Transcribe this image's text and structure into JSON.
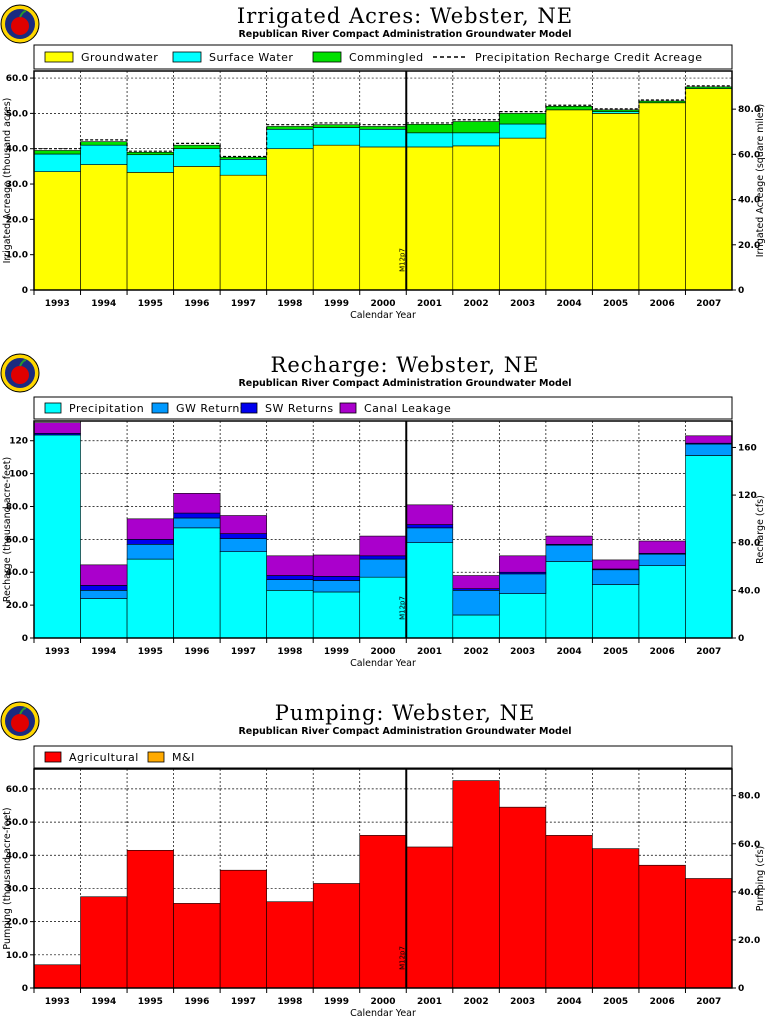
{
  "colors": {
    "groundwater": "#ffff00",
    "surface_water": "#00ffff",
    "commingled": "#00e000",
    "precipitation": "#00ffff",
    "gw_returns": "#0099ff",
    "sw_returns": "#0000ee",
    "canal_leakage": "#aa00cc",
    "agricultural": "#ff0000",
    "mi": "#ffaa00"
  },
  "icon": "apple-logo-icon",
  "chart_data": [
    {
      "type": "bar",
      "stacked": true,
      "title": "Irrigated Acres: Webster, NE",
      "subtitle": "Republican River Compact Administration Groundwater Model",
      "xlabel": "Calendar Year",
      "ylabel": "Irrigated Acreage (thousand acres)",
      "y2label": "Irrigated Acreage (square miles)",
      "categories": [
        "1993",
        "1994",
        "1995",
        "1996",
        "1997",
        "1998",
        "1999",
        "2000",
        "2001",
        "2002",
        "2003",
        "2004",
        "2005",
        "2006",
        "2007"
      ],
      "ylim": [
        0,
        62
      ],
      "yticks": [
        0,
        10.0,
        20.0,
        30.0,
        40.0,
        50.0,
        60.0
      ],
      "y2lim": [
        0,
        96.875
      ],
      "y2ticks": [
        0,
        20.0,
        40.0,
        60.0,
        80.0
      ],
      "grid": true,
      "legend_position": "top",
      "marker_label": "M12p7",
      "marker_between": [
        "2000",
        "2001"
      ],
      "series": [
        {
          "name": "Groundwater",
          "color": "#ffff00",
          "values": [
            33.5,
            35.5,
            33.3,
            35.0,
            32.5,
            40.0,
            41.0,
            40.5,
            40.5,
            40.8,
            43.0,
            51.0,
            50.0,
            53.0,
            57.0
          ]
        },
        {
          "name": "Surface Water",
          "color": "#00ffff",
          "values": [
            5.0,
            5.5,
            5.0,
            5.0,
            4.5,
            5.5,
            5.0,
            5.0,
            4.0,
            3.7,
            4.0,
            0,
            0.5,
            0,
            0
          ]
        },
        {
          "name": "Commingled",
          "color": "#00e000",
          "values": [
            1.0,
            1.0,
            0.7,
            1.0,
            0.6,
            0.8,
            0.8,
            0.8,
            2.4,
            3.2,
            3.0,
            1.0,
            0.5,
            0.5,
            0.5
          ]
        }
      ],
      "reference_line": {
        "name": "Precipitation Recharge Credit Acreage",
        "values": [
          40.0,
          42.5,
          39.3,
          41.5,
          37.8,
          46.8,
          47.3,
          46.8,
          47.3,
          48.2,
          50.5,
          52.3,
          51.3,
          53.8,
          57.8
        ]
      }
    },
    {
      "type": "bar",
      "stacked": true,
      "title": "Recharge: Webster, NE",
      "subtitle": "Republican River Compact Administration Groundwater Model",
      "xlabel": "Calendar Year",
      "ylabel": "Recharge (thousand acre-feet)",
      "y2label": "Recharge (cfs)",
      "categories": [
        "1993",
        "1994",
        "1995",
        "1996",
        "1997",
        "1998",
        "1999",
        "2000",
        "2001",
        "2002",
        "2003",
        "2004",
        "2005",
        "2006",
        "2007"
      ],
      "ylim": [
        0,
        132
      ],
      "yticks": [
        0,
        20.0,
        40.0,
        60.0,
        80.0,
        100,
        120
      ],
      "y2lim": [
        0,
        182.2
      ],
      "y2ticks": [
        0,
        40.0,
        80.0,
        120,
        160
      ],
      "grid": true,
      "legend_position": "top",
      "marker_label": "M12p7",
      "marker_between": [
        "2000",
        "2001"
      ],
      "series": [
        {
          "name": "Precipitation",
          "color": "#00ffff",
          "values": [
            123.5,
            24.0,
            48.0,
            67.0,
            52.5,
            29.0,
            28.0,
            37.0,
            58.0,
            14.0,
            27.0,
            46.5,
            32.5,
            44.0,
            111.0
          ]
        },
        {
          "name": "GW Returns",
          "color": "#0099ff",
          "values": [
            0,
            5.0,
            9.0,
            6.0,
            8.0,
            6.5,
            7.0,
            11.0,
            9.0,
            15.0,
            12.0,
            10.0,
            9.0,
            7.0,
            7.0
          ]
        },
        {
          "name": "SW Returns",
          "color": "#0000ee",
          "values": [
            1.0,
            3.0,
            3.0,
            3.0,
            3.0,
            2.5,
            2.5,
            2.0,
            2.0,
            1.0,
            1.0,
            0.5,
            0.5,
            0.5,
            0.5
          ]
        },
        {
          "name": "Canal Leakage",
          "color": "#aa00cc",
          "values": [
            6.5,
            12.5,
            12.5,
            12.0,
            11.0,
            12.0,
            13.0,
            12.0,
            12.0,
            8.0,
            10.0,
            5.0,
            5.5,
            7.5,
            4.5
          ]
        }
      ]
    },
    {
      "type": "bar",
      "stacked": true,
      "title": "Pumping: Webster, NE",
      "subtitle": "Republican River Compact Administration Groundwater Model",
      "xlabel": "Calendar Year",
      "ylabel": "Pumping (thousand acre-feet)",
      "y2label": "Pumping (cfs)",
      "categories": [
        "1993",
        "1994",
        "1995",
        "1996",
        "1997",
        "1998",
        "1999",
        "2000",
        "2001",
        "2002",
        "2003",
        "2004",
        "2005",
        "2006",
        "2007"
      ],
      "ylim": [
        0,
        66
      ],
      "yticks": [
        0,
        10.0,
        20.0,
        30.0,
        40.0,
        50.0,
        60.0
      ],
      "y2lim": [
        0,
        91.1
      ],
      "y2ticks": [
        0,
        20.0,
        40.0,
        60.0,
        80.0
      ],
      "grid": true,
      "legend_position": "top",
      "marker_label": "M12p7",
      "marker_between": [
        "2000",
        "2001"
      ],
      "series": [
        {
          "name": "Agricultural",
          "color": "#ff0000",
          "values": [
            7.0,
            27.5,
            41.5,
            25.5,
            35.5,
            26.0,
            31.5,
            46.0,
            42.5,
            62.5,
            54.5,
            46.0,
            42.0,
            37.0,
            33.0
          ]
        },
        {
          "name": "M&I",
          "color": "#ffaa00",
          "values": [
            0,
            0,
            0,
            0,
            0,
            0,
            0,
            0,
            0,
            0,
            0,
            0,
            0,
            0,
            0
          ]
        }
      ]
    }
  ]
}
